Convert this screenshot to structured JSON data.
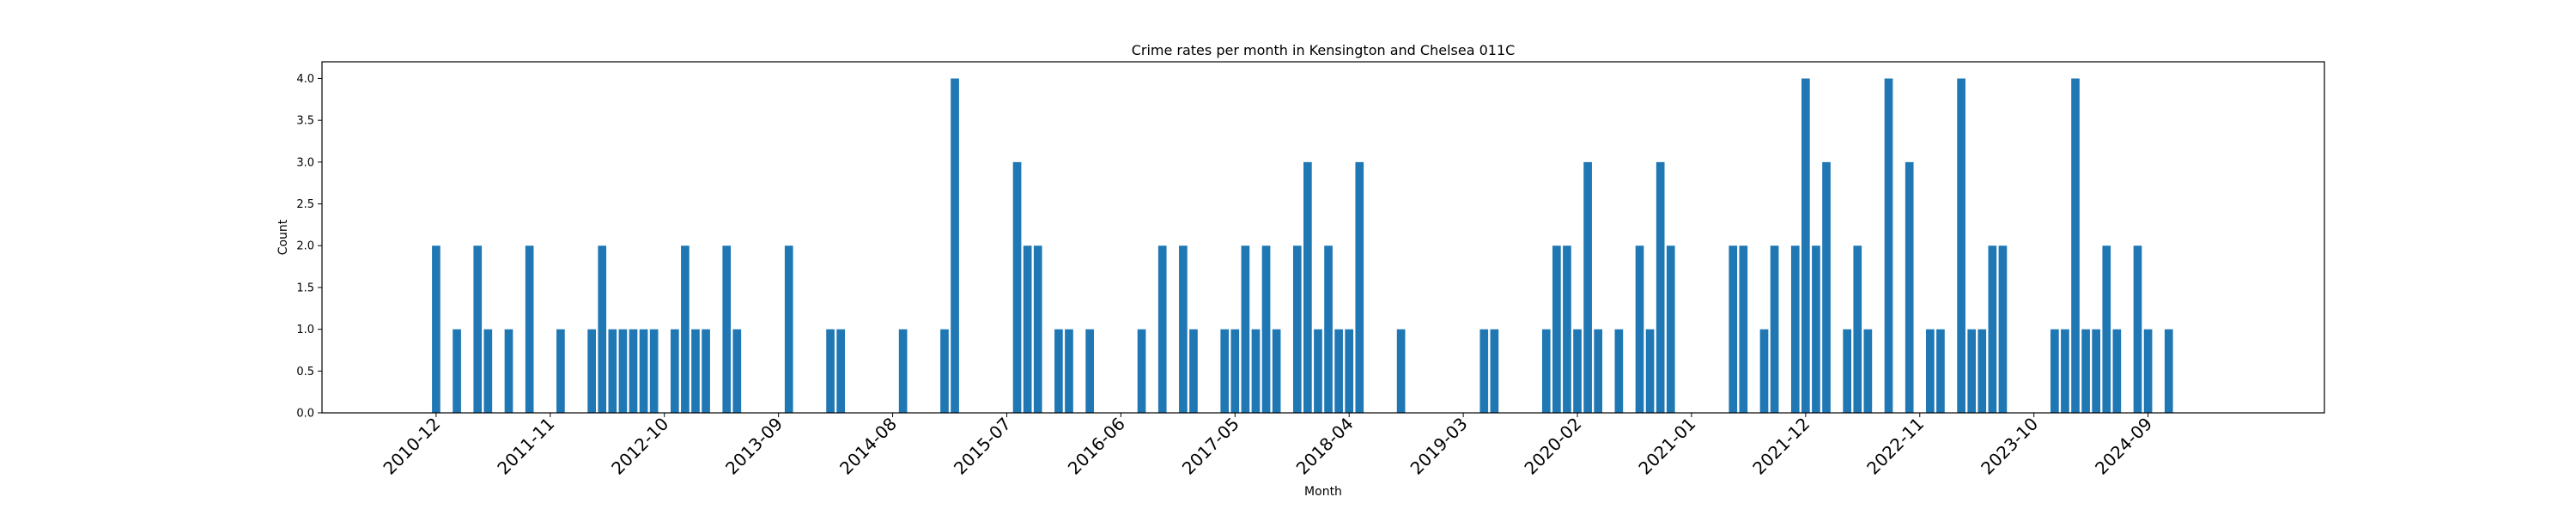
{
  "chart_data": {
    "type": "bar",
    "title": "Crime rates per month in Kensington and Chelsea 011C",
    "xlabel": "Month",
    "ylabel": "Count",
    "ylim": [
      0,
      4.2
    ],
    "y_ticks": [
      "0.0",
      "0.5",
      "1.0",
      "1.5",
      "2.0",
      "2.5",
      "3.0",
      "3.5",
      "4.0"
    ],
    "x_tick_labels": [
      "2010-12",
      "2011-11",
      "2012-10",
      "2013-09",
      "2014-08",
      "2015-07",
      "2016-06",
      "2017-05",
      "2018-04",
      "2019-03",
      "2020-02",
      "2021-01",
      "2021-12",
      "2022-11",
      "2023-10",
      "2024-09"
    ],
    "x_range": [
      "2010-01",
      "2026-02"
    ],
    "bar_color": "#1f77b4",
    "grid": false,
    "x": [
      "2010-12",
      "2011-02",
      "2011-04",
      "2011-05",
      "2011-07",
      "2011-09",
      "2011-12",
      "2012-03",
      "2012-04",
      "2012-05",
      "2012-06",
      "2012-07",
      "2012-08",
      "2012-09",
      "2012-11",
      "2012-12",
      "2013-01",
      "2013-02",
      "2013-04",
      "2013-05",
      "2013-10",
      "2014-02",
      "2014-03",
      "2014-09",
      "2015-01",
      "2015-02",
      "2015-08",
      "2015-09",
      "2015-10",
      "2015-12",
      "2016-01",
      "2016-03",
      "2016-08",
      "2016-10",
      "2016-12",
      "2017-01",
      "2017-04",
      "2017-05",
      "2017-06",
      "2017-07",
      "2017-08",
      "2017-09",
      "2017-11",
      "2017-12",
      "2018-01",
      "2018-02",
      "2018-03",
      "2018-04",
      "2018-05",
      "2018-09",
      "2019-05",
      "2019-06",
      "2019-11",
      "2019-12",
      "2020-01",
      "2020-02",
      "2020-03",
      "2020-04",
      "2020-06",
      "2020-08",
      "2020-09",
      "2020-10",
      "2020-11",
      "2021-05",
      "2021-06",
      "2021-08",
      "2021-09",
      "2021-11",
      "2021-12",
      "2022-01",
      "2022-02",
      "2022-04",
      "2022-05",
      "2022-06",
      "2022-08",
      "2022-10",
      "2022-12",
      "2023-01",
      "2023-03",
      "2023-04",
      "2023-05",
      "2023-06",
      "2023-07",
      "2023-12",
      "2024-01",
      "2024-02",
      "2024-03",
      "2024-04",
      "2024-05",
      "2024-06",
      "2024-08",
      "2024-09",
      "2024-11"
    ],
    "values": [
      2,
      1,
      2,
      1,
      1,
      2,
      1,
      1,
      2,
      1,
      1,
      1,
      1,
      1,
      1,
      2,
      1,
      1,
      2,
      1,
      2,
      1,
      1,
      1,
      1,
      4,
      3,
      2,
      2,
      1,
      1,
      1,
      1,
      2,
      2,
      1,
      1,
      1,
      2,
      1,
      2,
      1,
      2,
      3,
      1,
      2,
      1,
      1,
      3,
      1,
      1,
      1,
      1,
      2,
      2,
      1,
      3,
      1,
      1,
      2,
      1,
      3,
      2,
      2,
      2,
      1,
      2,
      2,
      4,
      2,
      3,
      1,
      2,
      1,
      4,
      3,
      1,
      1,
      4,
      1,
      1,
      2,
      2,
      1,
      1,
      4,
      1,
      1,
      2,
      1,
      2,
      1,
      1
    ]
  }
}
